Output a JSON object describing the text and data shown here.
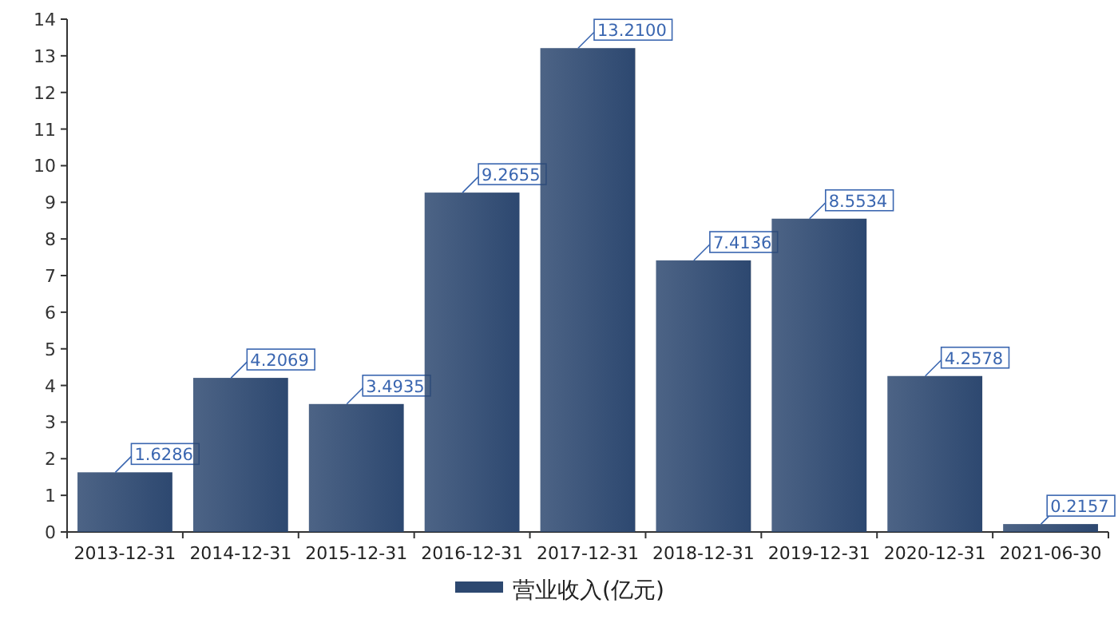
{
  "chart_data": {
    "type": "bar",
    "categories": [
      "2013-12-31",
      "2014-12-31",
      "2015-12-31",
      "2016-12-31",
      "2017-12-31",
      "2018-12-31",
      "2019-12-31",
      "2020-12-31",
      "2021-06-30"
    ],
    "series": [
      {
        "name": "营业收入(亿元)",
        "color": "#2d4870",
        "values": [
          1.6286,
          4.2069,
          3.4935,
          9.2655,
          13.21,
          7.4136,
          8.5534,
          4.2578,
          0.2157
        ],
        "value_labels": [
          "1.6286",
          "4.2069",
          "3.4935",
          "9.2655",
          "13.2100",
          "7.4136",
          "8.5534",
          "4.2578",
          "0.2157"
        ]
      }
    ],
    "ylim": [
      0,
      14
    ],
    "yticks": [
      0,
      1,
      2,
      3,
      4,
      5,
      6,
      7,
      8,
      9,
      10,
      11,
      12,
      13,
      14
    ],
    "grid": false,
    "legend": "bottom"
  }
}
